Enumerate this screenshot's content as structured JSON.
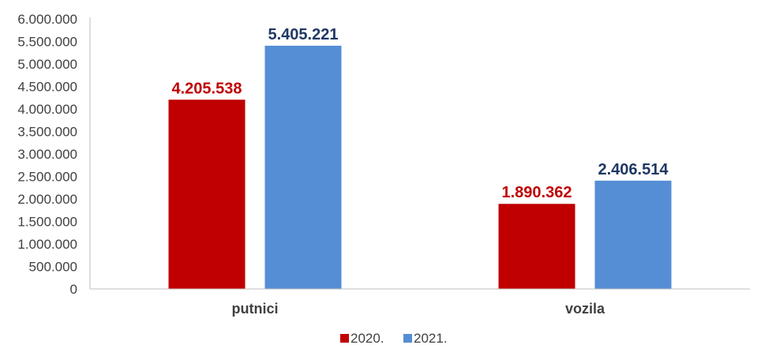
{
  "chart_data": {
    "type": "bar",
    "categories": [
      "putnici",
      "vozila"
    ],
    "series": [
      {
        "name": "2020.",
        "values": [
          4205538,
          1890362
        ],
        "labels": [
          "4.205.538",
          "1.890.362"
        ],
        "color": "#c00000",
        "label_color": "#c00000"
      },
      {
        "name": "2021.",
        "values": [
          5405221,
          2406514
        ],
        "labels": [
          "5.405.221",
          "2.406.514"
        ],
        "color": "#558ed5",
        "label_color": "#1f3864"
      }
    ],
    "yticks": [
      "0",
      "500.000",
      "1.000.000",
      "1.500.000",
      "2.000.000",
      "2.500.000",
      "3.000.000",
      "3.500.000",
      "4.000.000",
      "4.500.000",
      "5.000.000",
      "5.500.000",
      "6.000.000"
    ],
    "ylim": [
      0,
      6000000
    ],
    "ystep": 500000,
    "grid": false,
    "legend": "bottom-center",
    "title": "",
    "xlabel": "",
    "ylabel": ""
  }
}
